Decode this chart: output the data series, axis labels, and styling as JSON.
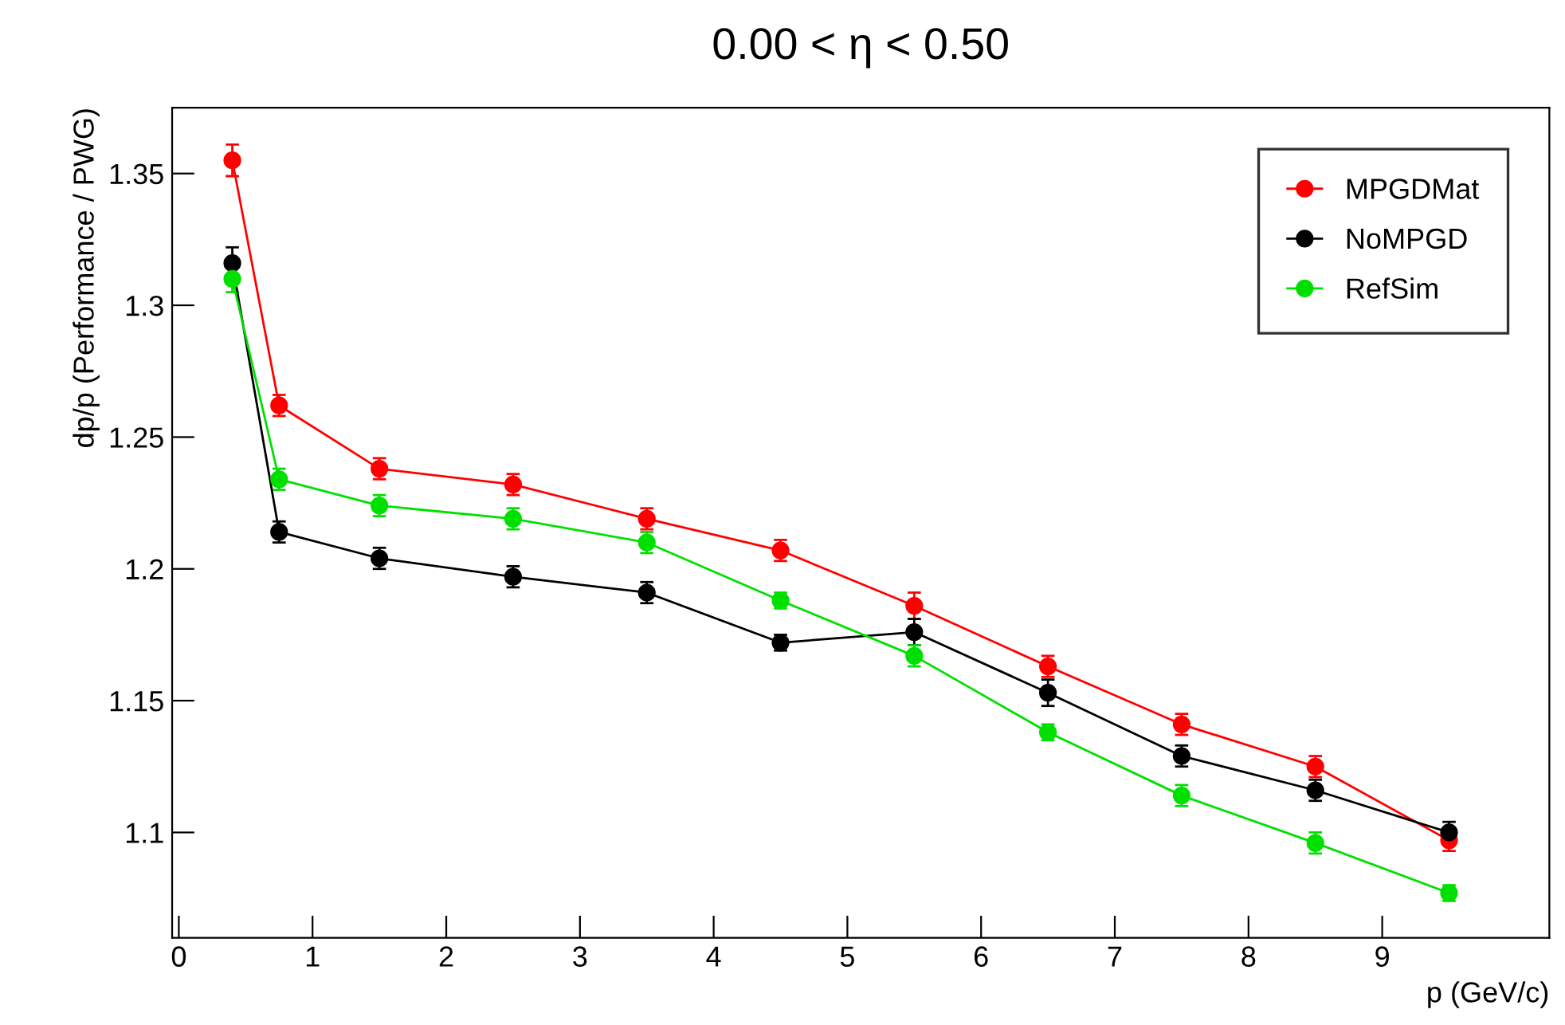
{
  "chart_data": {
    "type": "line",
    "title": "0.00 < η < 0.50",
    "xlabel": "p (GeV/c)",
    "ylabel": "dp/p (Performance / PWG)",
    "x": [
      0.4,
      0.75,
      1.5,
      2.5,
      3.5,
      4.5,
      5.5,
      6.5,
      7.5,
      8.5,
      9.5
    ],
    "series": [
      {
        "name": "MPGDMat",
        "color": "#ff0000",
        "values": [
          1.355,
          1.262,
          1.238,
          1.232,
          1.219,
          1.207,
          1.186,
          1.163,
          1.141,
          1.125,
          1.097
        ],
        "errors": [
          0.006,
          0.004,
          0.004,
          0.004,
          0.004,
          0.004,
          0.005,
          0.004,
          0.004,
          0.004,
          0.004
        ]
      },
      {
        "name": "NoMPGD",
        "color": "#000000",
        "values": [
          1.316,
          1.214,
          1.204,
          1.197,
          1.191,
          1.172,
          1.176,
          1.153,
          1.129,
          1.116,
          1.1
        ],
        "errors": [
          0.006,
          0.004,
          0.004,
          0.004,
          0.004,
          0.003,
          0.005,
          0.005,
          0.004,
          0.004,
          0.004
        ]
      },
      {
        "name": "RefSim",
        "color": "#00e000",
        "values": [
          1.31,
          1.234,
          1.224,
          1.219,
          1.21,
          1.188,
          1.167,
          1.138,
          1.114,
          1.096,
          1.077
        ],
        "errors": [
          0.005,
          0.004,
          0.004,
          0.004,
          0.004,
          0.003,
          0.004,
          0.003,
          0.004,
          0.004,
          0.003
        ]
      }
    ],
    "xlim": [
      -0.05,
      10.25
    ],
    "ylim": [
      1.06,
      1.375
    ],
    "xticks": [
      0,
      1,
      2,
      3,
      4,
      5,
      6,
      7,
      8,
      9
    ],
    "yticks": [
      1.1,
      1.15,
      1.2,
      1.25,
      1.3,
      1.35
    ],
    "grid": false,
    "legend": "top right",
    "marker": "circle",
    "line_style": "solid"
  }
}
